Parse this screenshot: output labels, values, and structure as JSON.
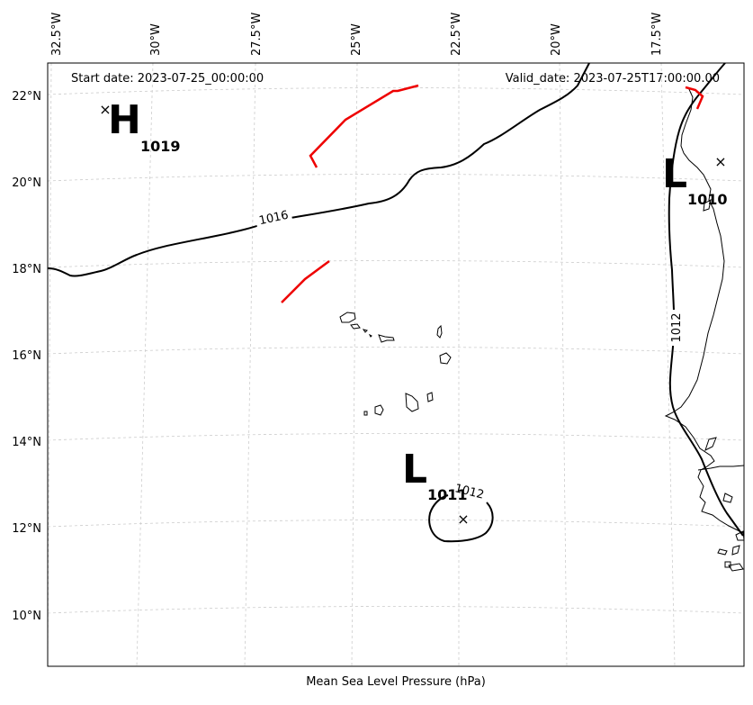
{
  "header": {
    "start_date": "Start date: 2023-07-25_00:00:00",
    "valid_date": "Valid_date: 2023-07-25T17:00:00.00"
  },
  "caption": "Mean Sea Level Pressure (hPa)",
  "axes": {
    "lon_labels": [
      "32.5°W",
      "30°W",
      "27.5°W",
      "25°W",
      "22.5°W",
      "20°W",
      "17.5°W"
    ],
    "lat_labels": [
      "22°N",
      "20°N",
      "18°N",
      "16°N",
      "14°N",
      "12°N",
      "10°N"
    ]
  },
  "pressure_centers": [
    {
      "type": "H",
      "value": "1019"
    },
    {
      "type": "L",
      "value": "1010"
    },
    {
      "type": "L",
      "value": "1011"
    }
  ],
  "contour_labels": [
    "1016",
    "1012",
    "1012"
  ],
  "colors": {
    "isobar": "#000000",
    "front": "#ee0000",
    "grid": "#cccccc",
    "coastline": "#000000"
  }
}
